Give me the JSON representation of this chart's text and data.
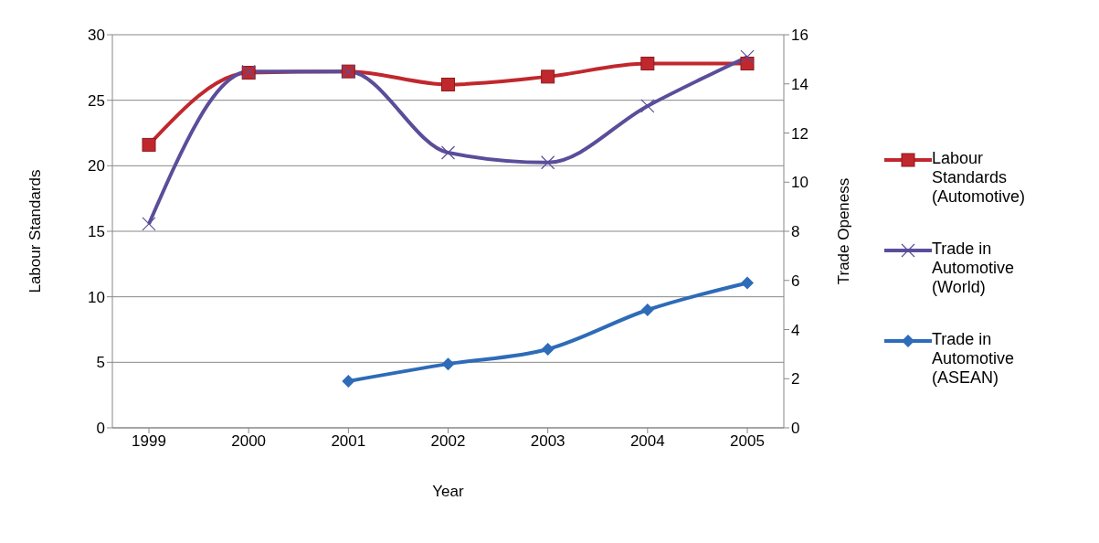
{
  "chart_data": {
    "type": "line",
    "xlabel": "Year",
    "ylabel": "Labour Standards",
    "y2label": "Trade Openess",
    "categories": [
      "1999",
      "2000",
      "2001",
      "2002",
      "2003",
      "2004",
      "2005"
    ],
    "series": [
      {
        "name": "Labour Standards (Automotive)",
        "color": "#c0282d",
        "marker": "square",
        "values": [
          21.6,
          27.1,
          27.2,
          26.2,
          26.8,
          27.8,
          27.8
        ]
      },
      {
        "name": "Trade in Automotive (World)",
        "color": "#5b4d9a",
        "marker": "cross",
        "axis": "y2",
        "values": [
          8.3,
          14.5,
          14.5,
          11.2,
          10.8,
          13.1,
          15.1
        ]
      },
      {
        "name": "Trade in Automotive (ASEAN)",
        "color": "#2e6bb8",
        "marker": "diamond",
        "axis": "y2",
        "values": [
          null,
          null,
          1.9,
          2.6,
          3.2,
          4.8,
          5.9
        ]
      }
    ],
    "ylim": [
      0,
      30
    ],
    "yticks": [
      0,
      5,
      10,
      15,
      20,
      25,
      30
    ],
    "y2lim": [
      0,
      16
    ],
    "y2ticks": [
      0,
      2,
      4,
      6,
      8,
      10,
      12,
      14,
      16
    ],
    "grid": "y",
    "legend": "right"
  }
}
